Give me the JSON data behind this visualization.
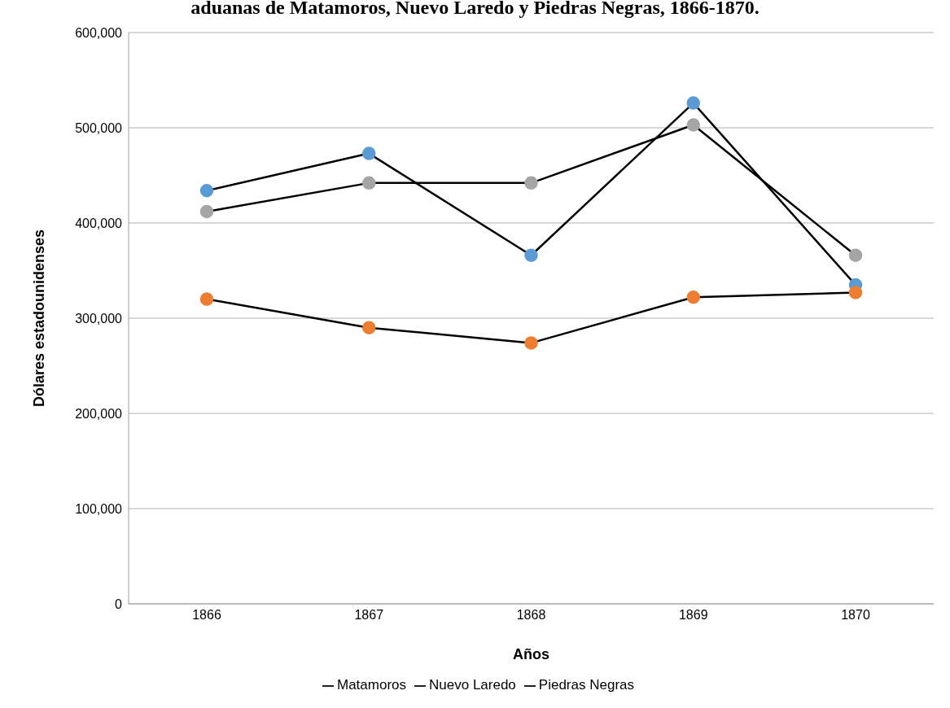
{
  "chart_data": {
    "type": "line",
    "title": "aduanas de Matamoros, Nuevo Laredo y Piedras Negras, 1866-1870.",
    "xlabel": "Años",
    "ylabel": "Dólares estadounidenses",
    "categories": [
      "1866",
      "1867",
      "1868",
      "1869",
      "1870"
    ],
    "series": [
      {
        "name": "Matamoros",
        "color": "#5b9bd5",
        "values": [
          434000,
          473000,
          366000,
          526000,
          335000
        ]
      },
      {
        "name": "Nuevo Laredo",
        "color": "#ed7d31",
        "values": [
          320000,
          290000,
          274000,
          322000,
          327000
        ]
      },
      {
        "name": "Piedras Negras",
        "color": "#a5a5a5",
        "values": [
          412000,
          442000,
          442000,
          503000,
          366000
        ]
      }
    ],
    "ylim": [
      0,
      600000
    ],
    "yticks": [
      0,
      {
        "value": 100000,
        "label": "100,000"
      },
      {
        "value": 200000,
        "label": "200,000"
      },
      {
        "value": 300000,
        "label": "300,000"
      },
      {
        "value": 400000,
        "label": "400,000"
      },
      {
        "value": 500000,
        "label": "500,000"
      },
      {
        "value": 600000,
        "label": "600,000"
      }
    ],
    "grid": "y",
    "legend": "bottom",
    "marker": "circle",
    "line_style": "solid"
  }
}
